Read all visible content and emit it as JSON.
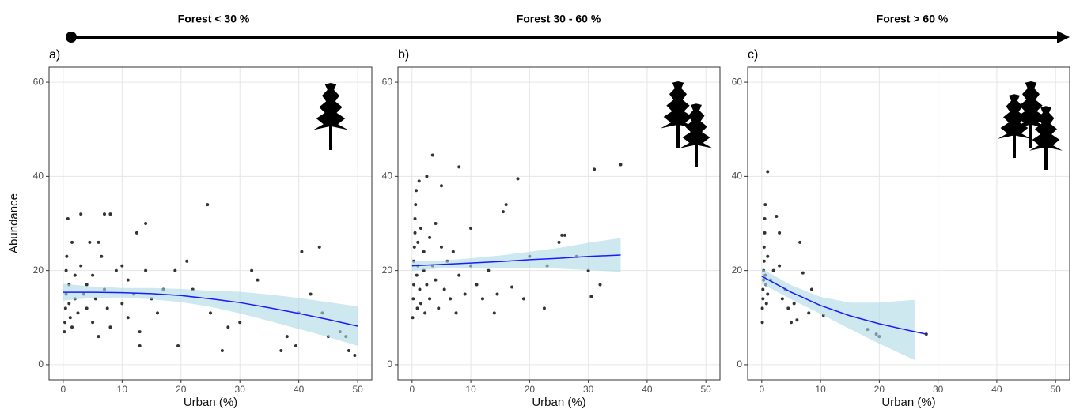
{
  "chart_data": [
    {
      "type": "scatter",
      "label": "a)",
      "title": "Forest < 30 %",
      "x_label": "Urban (%)",
      "y_label": "Abundance",
      "xlim": [
        -2.4,
        52.4
      ],
      "ylim": [
        -3.2,
        63.2
      ],
      "xticks": [
        0,
        10,
        20,
        30,
        40,
        50
      ],
      "yticks": [
        0,
        20,
        40,
        60
      ],
      "grid": true,
      "color": "#333333",
      "fit_color": "#1a1aff",
      "band_color": "#add8e6",
      "x": [
        0.2,
        0.3,
        0.4,
        0.5,
        0.5,
        0.6,
        0.8,
        1,
        1,
        1.2,
        1.5,
        1.5,
        2,
        2,
        2.5,
        3,
        3,
        3.5,
        4,
        4,
        4.5,
        5,
        5,
        5.5,
        6,
        6,
        6.5,
        7,
        7,
        7.5,
        8,
        8,
        9,
        10,
        10,
        11,
        11,
        12,
        12.5,
        13,
        13,
        14,
        14,
        15,
        16,
        17,
        19,
        19.5,
        21,
        22,
        24.5,
        25,
        27,
        28,
        30,
        32,
        33,
        37,
        38,
        39.5,
        40,
        40.5,
        42,
        43.5,
        44,
        45,
        47,
        48,
        49.5,
        48.5
      ],
      "values": [
        7,
        9,
        12,
        15,
        20,
        23,
        31,
        17,
        13,
        10,
        26,
        8,
        19,
        14,
        11,
        32,
        21,
        15,
        17,
        12,
        26,
        9,
        19,
        14,
        26,
        6,
        23,
        32,
        16,
        12,
        32,
        8,
        20,
        21,
        13,
        18,
        10,
        15,
        28,
        4,
        7,
        30,
        20,
        14,
        11,
        16,
        20,
        4,
        22,
        16,
        34,
        11,
        3,
        8,
        9,
        20,
        18,
        3,
        6,
        4,
        11,
        24,
        15,
        25,
        11,
        6,
        7,
        6,
        2,
        3
      ],
      "fit_x": [
        0,
        5,
        10,
        15,
        20,
        25,
        30,
        35,
        40,
        45,
        50
      ],
      "fit_y": [
        15.4,
        15.4,
        15.3,
        15.1,
        14.7,
        14.0,
        13.2,
        12.1,
        10.9,
        9.6,
        8.2
      ],
      "band_x": [
        0,
        5,
        10,
        15,
        20,
        25,
        30,
        35,
        40,
        45,
        50
      ],
      "band_lower": [
        13.6,
        14.2,
        14.3,
        13.9,
        13.3,
        12.3,
        10.9,
        9.3,
        7.6,
        5.9,
        4.0
      ],
      "band_upper": [
        17.2,
        16.6,
        16.3,
        16.3,
        16.1,
        15.7,
        15.5,
        14.9,
        14.2,
        13.3,
        12.4
      ]
    },
    {
      "type": "scatter",
      "label": "b)",
      "title": "Forest  30 - 60 %",
      "x_label": "Urban (%)",
      "xlim": [
        -2.4,
        52.4
      ],
      "ylim": [
        -3.2,
        63.2
      ],
      "xticks": [
        0,
        10,
        20,
        30,
        40,
        50
      ],
      "yticks": [
        0,
        20,
        40,
        60
      ],
      "grid": true,
      "color": "#333333",
      "fit_color": "#1a1aff",
      "band_color": "#add8e6",
      "x": [
        0.1,
        0.2,
        0.3,
        0.3,
        0.4,
        0.5,
        0.5,
        0.6,
        0.7,
        0.8,
        0.9,
        1,
        1,
        1.2,
        1.3,
        1.5,
        1.5,
        2,
        2,
        2.2,
        2.5,
        2.5,
        3,
        3,
        3.5,
        3.5,
        4,
        4,
        4.5,
        5,
        5,
        5.5,
        6,
        6.5,
        7,
        7.5,
        8,
        8,
        9,
        10,
        10,
        11,
        12,
        13,
        14,
        14.5,
        15.5,
        16,
        17,
        18,
        19,
        20,
        22.5,
        23,
        25,
        25.5,
        26,
        28,
        30,
        30.5,
        31,
        32,
        35.5
      ],
      "values": [
        10,
        14,
        17,
        22,
        25,
        28,
        31,
        34,
        37,
        19,
        12,
        21,
        26,
        39,
        16,
        29,
        13,
        20,
        24,
        11,
        40,
        17,
        27,
        14,
        44.5,
        21,
        30,
        18,
        12,
        25,
        38,
        16,
        22,
        14,
        24,
        11,
        42,
        19,
        15,
        29,
        21,
        17,
        14,
        20,
        11,
        15,
        32.5,
        34,
        16.5,
        39.5,
        14,
        23,
        12,
        21,
        26,
        27.5,
        27.5,
        23,
        20,
        14.5,
        41.5,
        17,
        42.5
      ],
      "fit_x": [
        0,
        5,
        10,
        15,
        20,
        25,
        30,
        35.5
      ],
      "fit_y": [
        21,
        21.3,
        21.6,
        21.9,
        22.3,
        22.6,
        23.0,
        23.3
      ],
      "band_x": [
        0,
        5,
        10,
        15,
        20,
        25,
        30,
        35.5
      ],
      "band_lower": [
        19.9,
        20.5,
        20.6,
        20.6,
        20.6,
        20.4,
        20.1,
        19.7
      ],
      "band_upper": [
        22.1,
        22.1,
        22.6,
        23.2,
        24.0,
        24.8,
        25.9,
        26.9
      ]
    },
    {
      "type": "scatter",
      "label": "c)",
      "title": "Forest > 60 %",
      "x_label": "Urban (%)",
      "xlim": [
        -2.4,
        52.4
      ],
      "ylim": [
        -3.2,
        63.2
      ],
      "xticks": [
        0,
        10,
        20,
        30,
        40,
        50
      ],
      "yticks": [
        0,
        20,
        40,
        60
      ],
      "grid": true,
      "color": "#333333",
      "fit_color": "#1a1aff",
      "band_color": "#add8e6",
      "x": [
        0.1,
        0.1,
        0.2,
        0.2,
        0.3,
        0.3,
        0.4,
        0.4,
        0.5,
        0.5,
        0.6,
        0.6,
        0.7,
        0.8,
        1,
        1,
        1,
        1.5,
        2,
        2.5,
        3,
        3,
        3.5,
        4,
        4.5,
        5,
        5.5,
        6,
        6.5,
        7,
        8,
        8.5,
        10.5,
        18,
        19.5,
        20,
        28
      ],
      "values": [
        9,
        12,
        14,
        16,
        18,
        20,
        22,
        25,
        28,
        31,
        34,
        19,
        17,
        13,
        41,
        23,
        15,
        18,
        20,
        31.5,
        28,
        21,
        14,
        16,
        12,
        9,
        13,
        9.5,
        26,
        19.5,
        11,
        16,
        10.5,
        7.5,
        6.5,
        6,
        6.5
      ],
      "fit_x": [
        0,
        5,
        10,
        15,
        20,
        25,
        28
      ],
      "fit_y": [
        18.8,
        15.4,
        12.6,
        10.4,
        8.7,
        7.3,
        6.5
      ],
      "band_x": [
        0,
        5,
        10,
        15,
        20,
        26
      ],
      "band_lower": [
        17.2,
        13.9,
        10.8,
        7.6,
        4.5,
        1.0
      ],
      "band_upper": [
        20.4,
        16.9,
        14.4,
        13.2,
        13.2,
        13.8
      ]
    }
  ]
}
